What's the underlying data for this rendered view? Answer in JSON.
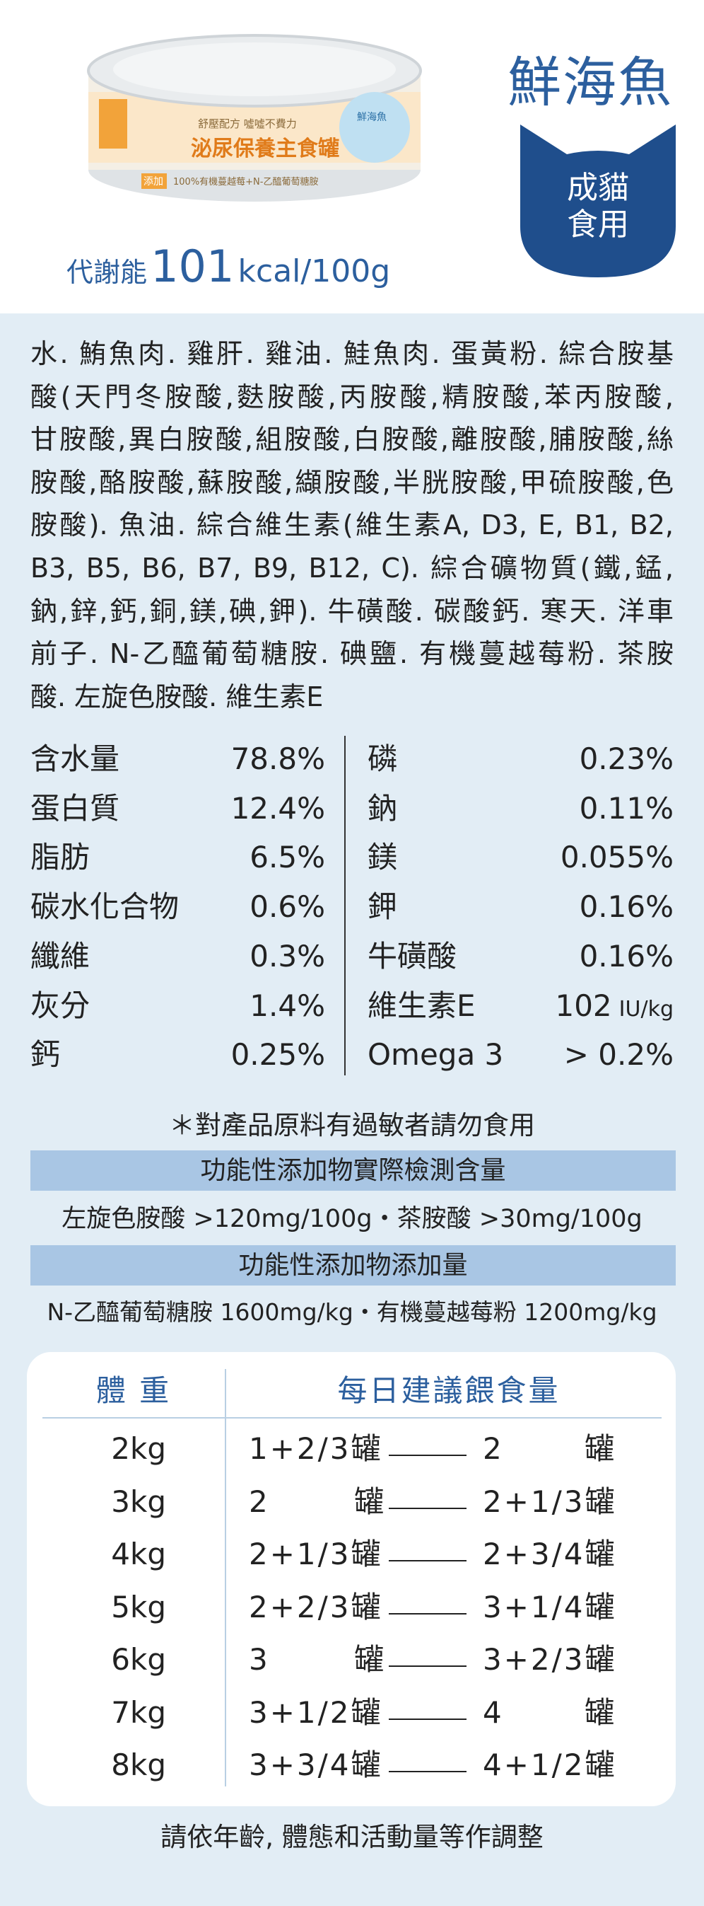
{
  "header": {
    "title": "鮮海魚",
    "badge": [
      "成貓",
      "食用"
    ],
    "energy": {
      "label": "代謝能",
      "value": "101",
      "unit": "kcal/100g"
    }
  },
  "can": {
    "tagline": "舒壓配方 噓噓不費力",
    "name": "泌尿保養主食罐",
    "added_tag": "添加",
    "added": "100%有機蔓越莓+N-乙醯葡萄糖胺",
    "flavor": "鮮海魚"
  },
  "ingredients": [
    "水. 鮪魚肉. 雞肝. 雞油. 鮭魚肉. 蛋黃粉. 綜合胺基",
    "酸(天門冬胺酸,麩胺酸,丙胺酸,精胺酸,苯丙胺酸,",
    "甘胺酸,異白胺酸,組胺酸,白胺酸,離胺酸,脯胺酸,絲",
    "胺酸,酪胺酸,蘇胺酸,纈胺酸,半胱胺酸,甲硫胺酸,色",
    "胺酸). 魚油. 綜合維生素(維生素A, D3, E, B1, B2,",
    "B3, B5, B6, B7, B9, B12, C). 綜合礦物質(鐵,錳,",
    "鈉,鋅,鈣,銅,鎂,碘,鉀). 牛磺酸. 碳酸鈣. 寒天. 洋車",
    "前子. N-乙醯葡萄糖胺. 碘鹽. 有機蔓越莓粉. 茶胺",
    "酸. 左旋色胺酸. 維生素E"
  ],
  "nutrients": {
    "left": [
      [
        "含水量",
        "78.8%"
      ],
      [
        "蛋白質",
        "12.4%"
      ],
      [
        "脂肪",
        "6.5%"
      ],
      [
        "碳水化合物",
        "0.6%"
      ],
      [
        "纖維",
        "0.3%"
      ],
      [
        "灰分",
        "1.4%"
      ],
      [
        "鈣",
        "0.25%"
      ]
    ],
    "right": [
      [
        "磷",
        "0.23%"
      ],
      [
        "鈉",
        "0.11%"
      ],
      [
        "鎂",
        "0.055%"
      ],
      [
        "鉀",
        "0.16%"
      ],
      [
        "牛磺酸",
        "0.16%"
      ],
      [
        "維生素E",
        "102",
        "IU/kg"
      ],
      [
        "Omega 3",
        "> 0.2%"
      ]
    ]
  },
  "note": "＊對產品原料有過敏者請勿食用",
  "additives": [
    {
      "title": "功能性添加物實際檢測含量",
      "content": "左旋色胺酸 >120mg/100g・茶胺酸 >30mg/100g"
    },
    {
      "title": "功能性添加物添加量",
      "content": "N-乙醯葡萄糖胺 1600mg/kg・有機蔓越莓粉 1200mg/kg"
    }
  ],
  "feeding": {
    "headers": [
      "體 重",
      "每日建議餵食量"
    ],
    "rows": [
      [
        "2kg",
        "1+2/3罐",
        "2 罐"
      ],
      [
        "3kg",
        "2 罐",
        "2+1/3罐"
      ],
      [
        "4kg",
        "2+1/3罐",
        "2+3/4罐"
      ],
      [
        "5kg",
        "2+2/3罐",
        "3+1/4罐"
      ],
      [
        "6kg",
        "3 罐",
        "3+2/3罐"
      ],
      [
        "7kg",
        "3+1/2罐",
        "4 罐"
      ],
      [
        "8kg",
        "3+3/4罐",
        "4+1/2罐"
      ]
    ]
  },
  "footer": "請依年齡, 體態和活動量等作調整"
}
